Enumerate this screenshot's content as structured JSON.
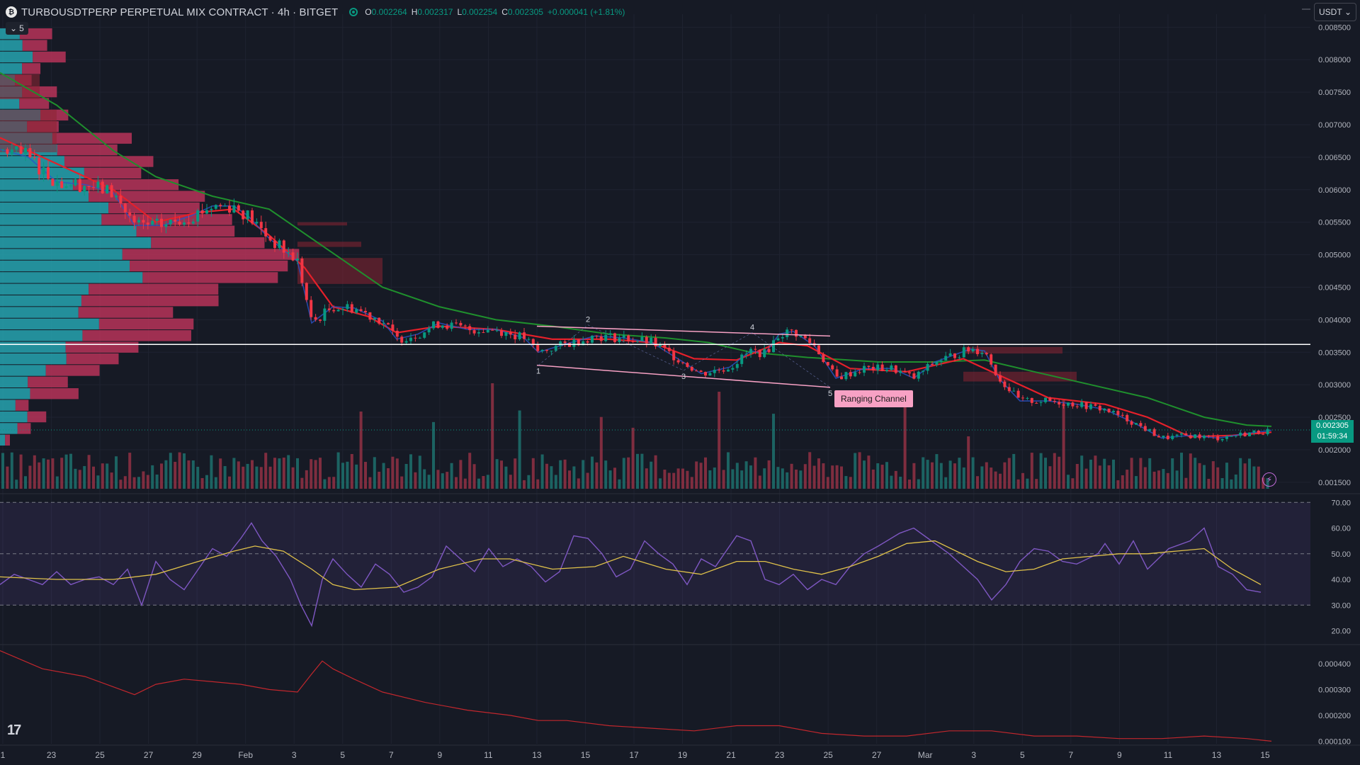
{
  "header": {
    "symbol_title": "TURBOUSDTPERP PERPETUAL MIX CONTRACT · 4h · BITGET",
    "logo_glyph": "₿",
    "ohlc": [
      {
        "key": "O",
        "value": "0.002264"
      },
      {
        "key": "H",
        "value": "0.002317"
      },
      {
        "key": "L",
        "value": "0.002254"
      },
      {
        "key": "C",
        "value": "0.002305"
      }
    ],
    "change": "+0.000041 (+1.81%)",
    "indicators_count": "5",
    "currency": "USDT"
  },
  "price_tag": {
    "price": "0.002305",
    "countdown": "01:59:34"
  },
  "channel_label": "Ranging Channel",
  "wave_labels": [
    "1",
    "2",
    "3",
    "4",
    "5"
  ],
  "price_axis": [
    "0.008500",
    "0.008000",
    "0.007500",
    "0.007000",
    "0.006500",
    "0.006000",
    "0.005500",
    "0.005000",
    "0.004500",
    "0.004000",
    "0.003500",
    "0.003000",
    "0.002500",
    "0.002000",
    "0.001500"
  ],
  "rsi_axis": [
    "70.00",
    "60.00",
    "50.00",
    "40.00",
    "30.00",
    "20.00"
  ],
  "osc_axis": [
    "0.000400",
    "0.000300",
    "0.000200",
    "0.000100"
  ],
  "time_axis": [
    "1",
    "23",
    "25",
    "27",
    "29",
    "Feb",
    "3",
    "5",
    "7",
    "9",
    "11",
    "13",
    "15",
    "17",
    "19",
    "21",
    "23",
    "25",
    "27",
    "Mar",
    "3",
    "5",
    "7",
    "9",
    "11",
    "13",
    "15"
  ],
  "colors": {
    "background": "#161a25",
    "up": "#089981",
    "down": "#f23645",
    "ema_fast": "#e5202a",
    "ema_mid": "#2b53c8",
    "ema_slow": "#1f8f2d",
    "rsi": "#7e57c2",
    "rsi_ma": "#e0c24a",
    "channel": "#f7a1c4",
    "level": "#ffffff"
  },
  "icons": {
    "tv_logo": "17",
    "bolt": "⚡",
    "chevron": "⌄"
  },
  "chart_data": {
    "type": "candlestick",
    "title": "TURBOUSDTPERP PERPETUAL MIX CONTRACT · 4h · BITGET",
    "ylim": [
      0.0014,
      0.0087
    ],
    "horizontal_level": 0.00362,
    "last_price": 0.002305,
    "price_path": [
      [
        0,
        0.00662
      ],
      [
        40,
        0.0065
      ],
      [
        80,
        0.00612
      ],
      [
        120,
        0.00608
      ],
      [
        160,
        0.00595
      ],
      [
        190,
        0.00545
      ],
      [
        230,
        0.00545
      ],
      [
        270,
        0.0056
      ],
      [
        300,
        0.00575
      ],
      [
        330,
        0.00575
      ],
      [
        350,
        0.0056
      ],
      [
        380,
        0.00525
      ],
      [
        420,
        0.0049
      ],
      [
        440,
        0.00395
      ],
      [
        470,
        0.0042
      ],
      [
        500,
        0.00418
      ],
      [
        540,
        0.00398
      ],
      [
        560,
        0.0037
      ],
      [
        590,
        0.00378
      ],
      [
        620,
        0.00395
      ],
      [
        660,
        0.00385
      ],
      [
        700,
        0.00385
      ],
      [
        740,
        0.00372
      ],
      [
        760,
        0.0035
      ],
      [
        800,
        0.00363
      ],
      [
        840,
        0.00375
      ],
      [
        880,
        0.00372
      ],
      [
        920,
        0.00365
      ],
      [
        960,
        0.00338
      ],
      [
        990,
        0.00317
      ],
      [
        1030,
        0.00327
      ],
      [
        1060,
        0.00352
      ],
      [
        1080,
        0.00348
      ],
      [
        1100,
        0.00378
      ],
      [
        1120,
        0.00382
      ],
      [
        1150,
        0.0036
      ],
      [
        1180,
        0.0031
      ],
      [
        1220,
        0.00325
      ],
      [
        1260,
        0.00325
      ],
      [
        1290,
        0.0031
      ],
      [
        1320,
        0.00335
      ],
      [
        1370,
        0.00355
      ],
      [
        1390,
        0.00352
      ],
      [
        1410,
        0.0031
      ],
      [
        1440,
        0.00275
      ],
      [
        1480,
        0.00275
      ],
      [
        1520,
        0.0027
      ],
      [
        1560,
        0.00262
      ],
      [
        1600,
        0.00242
      ],
      [
        1640,
        0.00218
      ],
      [
        1680,
        0.00222
      ],
      [
        1720,
        0.00218
      ],
      [
        1760,
        0.00225
      ],
      [
        1795,
        0.0023
      ]
    ],
    "ema_fast": [
      [
        0,
        0.0068
      ],
      [
        80,
        0.0064
      ],
      [
        160,
        0.006
      ],
      [
        220,
        0.0055
      ],
      [
        280,
        0.00565
      ],
      [
        330,
        0.0057
      ],
      [
        380,
        0.0053
      ],
      [
        430,
        0.0048
      ],
      [
        470,
        0.0042
      ],
      [
        520,
        0.00405
      ],
      [
        560,
        0.0038
      ],
      [
        620,
        0.0039
      ],
      [
        700,
        0.00385
      ],
      [
        780,
        0.0037
      ],
      [
        860,
        0.0037
      ],
      [
        920,
        0.00365
      ],
      [
        980,
        0.0034
      ],
      [
        1040,
        0.00338
      ],
      [
        1100,
        0.00365
      ],
      [
        1140,
        0.0036
      ],
      [
        1200,
        0.00325
      ],
      [
        1280,
        0.0032
      ],
      [
        1360,
        0.0034
      ],
      [
        1420,
        0.0031
      ],
      [
        1480,
        0.0028
      ],
      [
        1560,
        0.0027
      ],
      [
        1620,
        0.0025
      ],
      [
        1680,
        0.0022
      ],
      [
        1740,
        0.00222
      ],
      [
        1795,
        0.00227
      ]
    ],
    "ema_slow": [
      [
        0,
        0.0078
      ],
      [
        80,
        0.0073
      ],
      [
        160,
        0.0066
      ],
      [
        220,
        0.0062
      ],
      [
        300,
        0.0059
      ],
      [
        380,
        0.0057
      ],
      [
        460,
        0.0051
      ],
      [
        540,
        0.0045
      ],
      [
        620,
        0.0042
      ],
      [
        700,
        0.004
      ],
      [
        780,
        0.0039
      ],
      [
        860,
        0.00378
      ],
      [
        940,
        0.00372
      ],
      [
        1000,
        0.00365
      ],
      [
        1060,
        0.0035
      ],
      [
        1140,
        0.00342
      ],
      [
        1240,
        0.00335
      ],
      [
        1320,
        0.00335
      ],
      [
        1390,
        0.00338
      ],
      [
        1460,
        0.0032
      ],
      [
        1540,
        0.003
      ],
      [
        1620,
        0.0028
      ],
      [
        1700,
        0.0025
      ],
      [
        1760,
        0.00238
      ],
      [
        1795,
        0.00236
      ]
    ],
    "channel_top": [
      [
        758,
        0.0039
      ],
      [
        1172,
        0.00375
      ]
    ],
    "channel_bottom": [
      [
        758,
        0.0033
      ],
      [
        1172,
        0.00296
      ]
    ],
    "rsi": {
      "ylim": [
        16,
        72
      ],
      "bands": [
        30,
        50,
        70
      ],
      "path": [
        [
          0,
          38
        ],
        [
          20,
          42
        ],
        [
          40,
          40
        ],
        [
          60,
          38
        ],
        [
          80,
          43
        ],
        [
          100,
          38
        ],
        [
          120,
          40
        ],
        [
          140,
          41
        ],
        [
          160,
          38
        ],
        [
          180,
          44
        ],
        [
          200,
          30
        ],
        [
          220,
          47
        ],
        [
          240,
          40
        ],
        [
          260,
          36
        ],
        [
          280,
          44
        ],
        [
          300,
          52
        ],
        [
          320,
          49
        ],
        [
          340,
          56
        ],
        [
          355,
          62
        ],
        [
          370,
          55
        ],
        [
          390,
          49
        ],
        [
          410,
          40
        ],
        [
          425,
          30
        ],
        [
          440,
          22
        ],
        [
          455,
          40
        ],
        [
          470,
          48
        ],
        [
          490,
          42
        ],
        [
          510,
          37
        ],
        [
          530,
          46
        ],
        [
          550,
          42
        ],
        [
          570,
          35
        ],
        [
          590,
          37
        ],
        [
          610,
          41
        ],
        [
          630,
          53
        ],
        [
          650,
          48
        ],
        [
          670,
          43
        ],
        [
          690,
          52
        ],
        [
          710,
          45
        ],
        [
          730,
          48
        ],
        [
          750,
          45
        ],
        [
          770,
          39
        ],
        [
          790,
          43
        ],
        [
          810,
          57
        ],
        [
          830,
          56
        ],
        [
          850,
          50
        ],
        [
          870,
          41
        ],
        [
          890,
          44
        ],
        [
          910,
          55
        ],
        [
          930,
          50
        ],
        [
          950,
          46
        ],
        [
          970,
          38
        ],
        [
          990,
          48
        ],
        [
          1010,
          45
        ],
        [
          1040,
          57
        ],
        [
          1060,
          55
        ],
        [
          1080,
          40
        ],
        [
          1100,
          38
        ],
        [
          1120,
          42
        ],
        [
          1140,
          36
        ],
        [
          1160,
          40
        ],
        [
          1180,
          38
        ],
        [
          1200,
          45
        ],
        [
          1220,
          50
        ],
        [
          1240,
          53
        ],
        [
          1270,
          58
        ],
        [
          1290,
          60
        ],
        [
          1310,
          56
        ],
        [
          1340,
          50
        ],
        [
          1360,
          45
        ],
        [
          1380,
          40
        ],
        [
          1400,
          32
        ],
        [
          1420,
          38
        ],
        [
          1440,
          47
        ],
        [
          1460,
          52
        ],
        [
          1480,
          51
        ],
        [
          1500,
          47
        ],
        [
          1520,
          46
        ],
        [
          1550,
          50
        ],
        [
          1560,
          54
        ],
        [
          1580,
          46
        ],
        [
          1600,
          55
        ],
        [
          1620,
          44
        ],
        [
          1650,
          52
        ],
        [
          1680,
          55
        ],
        [
          1700,
          60
        ],
        [
          1720,
          45
        ],
        [
          1740,
          42
        ],
        [
          1760,
          36
        ],
        [
          1780,
          35
        ],
        [
          1800,
          31
        ],
        [
          1820,
          31
        ],
        [
          1840,
          29
        ],
        [
          1860,
          36
        ],
        [
          1880,
          29
        ],
        [
          1900,
          33
        ],
        [
          1920,
          32
        ]
      ],
      "ma": [
        [
          0,
          41
        ],
        [
          80,
          40
        ],
        [
          160,
          40
        ],
        [
          220,
          42
        ],
        [
          280,
          47
        ],
        [
          330,
          51
        ],
        [
          360,
          53
        ],
        [
          400,
          51
        ],
        [
          440,
          44
        ],
        [
          470,
          38
        ],
        [
          500,
          36
        ],
        [
          560,
          37
        ],
        [
          620,
          44
        ],
        [
          680,
          48
        ],
        [
          720,
          48
        ],
        [
          780,
          44
        ],
        [
          840,
          45
        ],
        [
          880,
          49
        ],
        [
          940,
          44
        ],
        [
          990,
          42
        ],
        [
          1040,
          47
        ],
        [
          1080,
          47
        ],
        [
          1120,
          44
        ],
        [
          1160,
          42
        ],
        [
          1200,
          45
        ],
        [
          1240,
          49
        ],
        [
          1280,
          54
        ],
        [
          1320,
          55
        ],
        [
          1380,
          47
        ],
        [
          1420,
          43
        ],
        [
          1460,
          44
        ],
        [
          1500,
          48
        ],
        [
          1540,
          49
        ],
        [
          1580,
          50
        ],
        [
          1620,
          50
        ],
        [
          1660,
          51
        ],
        [
          1700,
          52
        ],
        [
          1740,
          44
        ],
        [
          1780,
          38
        ],
        [
          1800,
          37
        ],
        [
          1840,
          34
        ],
        [
          1880,
          33
        ],
        [
          1920,
          33
        ]
      ]
    },
    "oscillator": {
      "ylim": [
        9e-05,
        0.00046
      ],
      "path": [
        [
          0,
          0.00045
        ],
        [
          60,
          0.00038
        ],
        [
          120,
          0.00035
        ],
        [
          160,
          0.00031
        ],
        [
          190,
          0.00028
        ],
        [
          220,
          0.00032
        ],
        [
          260,
          0.00034
        ],
        [
          300,
          0.00033
        ],
        [
          340,
          0.00032
        ],
        [
          380,
          0.0003
        ],
        [
          420,
          0.00029
        ],
        [
          440,
          0.00036
        ],
        [
          455,
          0.00041
        ],
        [
          470,
          0.00038
        ],
        [
          500,
          0.00034
        ],
        [
          540,
          0.00029
        ],
        [
          600,
          0.00025
        ],
        [
          660,
          0.00022
        ],
        [
          720,
          0.0002
        ],
        [
          760,
          0.00018
        ],
        [
          800,
          0.00018
        ],
        [
          860,
          0.00016
        ],
        [
          920,
          0.00015
        ],
        [
          980,
          0.00014
        ],
        [
          1040,
          0.00016
        ],
        [
          1100,
          0.00016
        ],
        [
          1160,
          0.00013
        ],
        [
          1220,
          0.00012
        ],
        [
          1280,
          0.00012
        ],
        [
          1340,
          0.00014
        ],
        [
          1400,
          0.00014
        ],
        [
          1460,
          0.00012
        ],
        [
          1520,
          0.00012
        ],
        [
          1580,
          0.00011
        ],
        [
          1640,
          0.00011
        ],
        [
          1700,
          0.00012
        ],
        [
          1760,
          0.00011
        ],
        [
          1795,
          0.0001
        ]
      ]
    }
  }
}
